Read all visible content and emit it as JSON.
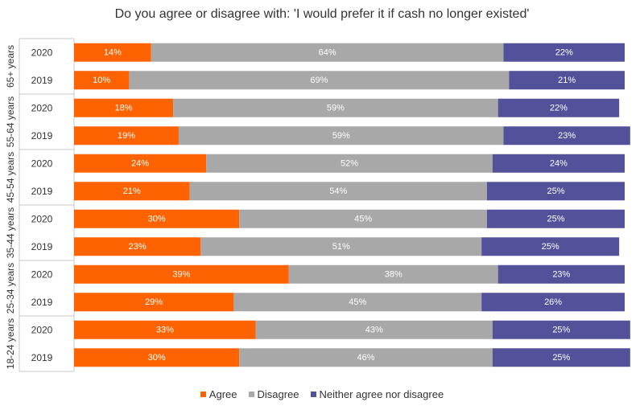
{
  "chart_data": {
    "type": "bar",
    "orientation": "horizontal",
    "stacked": true,
    "percent_stacked": true,
    "title": "Do you agree or disagree with: 'I would prefer it if cash no longer existed'",
    "groups": [
      {
        "label": "65+ years",
        "years": [
          "2020",
          "2019"
        ]
      },
      {
        "label": "55-64 years",
        "years": [
          "2020",
          "2019"
        ]
      },
      {
        "label": "45-54 years",
        "years": [
          "2020",
          "2019"
        ]
      },
      {
        "label": "35-44 years",
        "years": [
          "2020",
          "2019"
        ]
      },
      {
        "label": "25-34 years",
        "years": [
          "2020",
          "2019"
        ]
      },
      {
        "label": "18-24 years",
        "years": [
          "2020",
          "2019"
        ]
      }
    ],
    "series": [
      {
        "name": "Agree",
        "color": "#ff6200",
        "values": [
          14,
          10,
          18,
          19,
          24,
          21,
          30,
          23,
          39,
          29,
          33,
          30
        ]
      },
      {
        "name": "Disagree",
        "color": "#a8a8a8",
        "values": [
          64,
          69,
          59,
          59,
          52,
          54,
          45,
          51,
          38,
          45,
          43,
          46
        ]
      },
      {
        "name": "Neither agree nor disagree",
        "color": "#525199",
        "values": [
          22,
          21,
          22,
          23,
          24,
          25,
          25,
          25,
          23,
          26,
          25,
          25
        ]
      }
    ],
    "data_labels": [
      [
        "14%",
        "64%",
        "22%"
      ],
      [
        "10%",
        "69%",
        "21%"
      ],
      [
        "18%",
        "59%",
        "22%"
      ],
      [
        "19%",
        "59%",
        "23%"
      ],
      [
        "24%",
        "52%",
        "24%"
      ],
      [
        "21%",
        "54%",
        "25%"
      ],
      [
        "30%",
        "45%",
        "25%"
      ],
      [
        "23%",
        "51%",
        "25%"
      ],
      [
        "39%",
        "38%",
        "23%"
      ],
      [
        "29%",
        "45%",
        "26%"
      ],
      [
        "33%",
        "43%",
        "25%"
      ],
      [
        "30%",
        "46%",
        "25%"
      ]
    ],
    "legend_position": "bottom",
    "xlim": [
      0,
      100
    ]
  }
}
